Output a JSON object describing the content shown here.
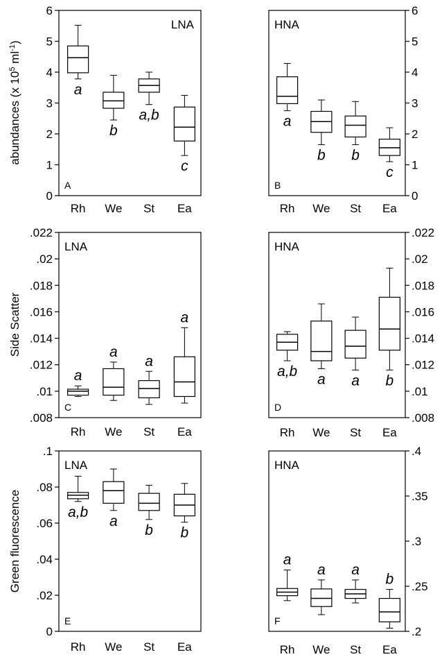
{
  "chart_data": [
    {
      "type": "box",
      "panel": "A",
      "group": "LNA",
      "group_corner": "upper right",
      "y_axis_side": "left",
      "ylabel": [
        "abundances  (x 10",
        "5",
        " ml",
        "-1",
        ")"
      ],
      "categories": [
        "Rh",
        "We",
        "St",
        "Ea"
      ],
      "ylim": [
        0,
        6
      ],
      "yticks": [
        0,
        1,
        2,
        3,
        4,
        5,
        6
      ],
      "boxes": [
        {
          "whisker_low": 3.78,
          "q1": 3.98,
          "median": 4.47,
          "q3": 4.85,
          "whisker_high": 5.52
        },
        {
          "whisker_low": 2.45,
          "q1": 2.83,
          "median": 3.07,
          "q3": 3.35,
          "whisker_high": 3.9
        },
        {
          "whisker_low": 2.95,
          "q1": 3.35,
          "median": 3.57,
          "q3": 3.78,
          "whisker_high": 4.0
        },
        {
          "whisker_low": 1.3,
          "q1": 1.77,
          "median": 2.22,
          "q3": 2.87,
          "whisker_high": 3.25
        }
      ],
      "letters": [
        "a",
        "b",
        "a,b",
        "c"
      ],
      "letter_position": "below",
      "letter_color": "#e8141c"
    },
    {
      "type": "box",
      "panel": "B",
      "group": "HNA",
      "group_corner": "upper left",
      "y_axis_side": "right",
      "categories": [
        "Rh",
        "We",
        "St",
        "Ea"
      ],
      "ylim": [
        0,
        6
      ],
      "yticks": [
        0,
        1,
        2,
        3,
        4,
        5,
        6
      ],
      "boxes": [
        {
          "whisker_low": 2.75,
          "q1": 2.98,
          "median": 3.22,
          "q3": 3.85,
          "whisker_high": 4.28
        },
        {
          "whisker_low": 1.65,
          "q1": 2.05,
          "median": 2.4,
          "q3": 2.73,
          "whisker_high": 3.1
        },
        {
          "whisker_low": 1.65,
          "q1": 1.9,
          "median": 2.28,
          "q3": 2.58,
          "whisker_high": 3.05
        },
        {
          "whisker_low": 1.1,
          "q1": 1.3,
          "median": 1.55,
          "q3": 1.83,
          "whisker_high": 2.2
        }
      ],
      "letters": [
        "a",
        "b",
        "b",
        "c"
      ],
      "letter_position": "below",
      "letter_color": "#e8141c"
    },
    {
      "type": "box",
      "panel": "C",
      "group": "LNA",
      "group_corner": "upper left",
      "y_axis_side": "left",
      "ylabel": [
        "Side Scatter"
      ],
      "categories": [
        "Rh",
        "We",
        "St",
        "Ea"
      ],
      "ylim": [
        0.008,
        0.022
      ],
      "yticks": [
        {
          "value": 0.008,
          "label": ".008"
        },
        {
          "value": 0.01,
          "label": ".01"
        },
        {
          "value": 0.012,
          "label": ".012"
        },
        {
          "value": 0.014,
          "label": ".014"
        },
        {
          "value": 0.016,
          "label": ".016"
        },
        {
          "value": 0.018,
          "label": ".018"
        },
        {
          "value": 0.02,
          "label": ".02"
        },
        {
          "value": 0.022,
          "label": ".022"
        }
      ],
      "boxes": [
        {
          "whisker_low": 0.0096,
          "q1": 0.0097,
          "median": 0.01,
          "q3": 0.01015,
          "whisker_high": 0.0104
        },
        {
          "whisker_low": 0.0093,
          "q1": 0.0097,
          "median": 0.0103,
          "q3": 0.0117,
          "whisker_high": 0.0122
        },
        {
          "whisker_low": 0.009,
          "q1": 0.0095,
          "median": 0.0102,
          "q3": 0.0108,
          "whisker_high": 0.0115
        },
        {
          "whisker_low": 0.0091,
          "q1": 0.0096,
          "median": 0.0107,
          "q3": 0.0126,
          "whisker_high": 0.0148
        }
      ],
      "letters": [
        "a",
        "a",
        "a",
        "a"
      ],
      "letter_position": "above",
      "letter_color": "#e8141c"
    },
    {
      "type": "box",
      "panel": "D",
      "group": "HNA",
      "group_corner": "upper left",
      "y_axis_side": "right",
      "categories": [
        "Rh",
        "We",
        "St",
        "Ea"
      ],
      "ylim": [
        0.008,
        0.022
      ],
      "yticks": [
        {
          "value": 0.008,
          "label": ".008"
        },
        {
          "value": 0.01,
          "label": ".01"
        },
        {
          "value": 0.012,
          "label": ".012"
        },
        {
          "value": 0.014,
          "label": ".014"
        },
        {
          "value": 0.016,
          "label": ".016"
        },
        {
          "value": 0.018,
          "label": ".018"
        },
        {
          "value": 0.02,
          "label": ".02"
        },
        {
          "value": 0.022,
          "label": ".022"
        }
      ],
      "boxes": [
        {
          "whisker_low": 0.0123,
          "q1": 0.0131,
          "median": 0.0137,
          "q3": 0.0143,
          "whisker_high": 0.0145
        },
        {
          "whisker_low": 0.0117,
          "q1": 0.0123,
          "median": 0.013,
          "q3": 0.0153,
          "whisker_high": 0.0166
        },
        {
          "whisker_low": 0.0116,
          "q1": 0.0125,
          "median": 0.0134,
          "q3": 0.0146,
          "whisker_high": 0.0156
        },
        {
          "whisker_low": 0.0116,
          "q1": 0.0131,
          "median": 0.0147,
          "q3": 0.0171,
          "whisker_high": 0.0193
        }
      ],
      "letters": [
        "a,b",
        "a",
        "a",
        "b"
      ],
      "letter_position": "below",
      "letter_color": "#e8141c"
    },
    {
      "type": "box",
      "panel": "E",
      "group": "LNA",
      "group_corner": "upper left",
      "y_axis_side": "left",
      "ylabel": [
        "Green fluorescence"
      ],
      "categories": [
        "Rh",
        "We",
        "St",
        "Ea"
      ],
      "ylim": [
        0,
        0.1
      ],
      "yticks": [
        0,
        {
          "value": 0.02,
          "label": ".02"
        },
        {
          "value": 0.04,
          "label": ".04"
        },
        {
          "value": 0.06,
          "label": ".06"
        },
        {
          "value": 0.08,
          "label": ".08"
        },
        {
          "value": 0.1,
          "label": ".1"
        }
      ],
      "boxes": [
        {
          "whisker_low": 0.072,
          "q1": 0.0735,
          "median": 0.0755,
          "q3": 0.077,
          "whisker_high": 0.086
        },
        {
          "whisker_low": 0.067,
          "q1": 0.071,
          "median": 0.078,
          "q3": 0.083,
          "whisker_high": 0.09
        },
        {
          "whisker_low": 0.062,
          "q1": 0.067,
          "median": 0.071,
          "q3": 0.0765,
          "whisker_high": 0.081
        },
        {
          "whisker_low": 0.0605,
          "q1": 0.064,
          "median": 0.07,
          "q3": 0.076,
          "whisker_high": 0.082
        }
      ],
      "letters": [
        "a,b",
        "a",
        "b",
        "b"
      ],
      "letter_position": "below",
      "letter_color": "#e8141c"
    },
    {
      "type": "box",
      "panel": "F",
      "group": "HNA",
      "group_corner": "upper left",
      "y_axis_side": "right",
      "categories": [
        "Rh",
        "We",
        "St",
        "Ea"
      ],
      "ylim": [
        0.2,
        0.4
      ],
      "yticks": [
        {
          "value": 0.2,
          "label": ".2"
        },
        {
          "value": 0.25,
          "label": ".25"
        },
        {
          "value": 0.3,
          "label": ".3"
        },
        {
          "value": 0.35,
          "label": ".35"
        },
        {
          "value": 0.4,
          "label": ".4"
        }
      ],
      "boxes": [
        {
          "whisker_low": 0.234,
          "q1": 0.2395,
          "median": 0.2435,
          "q3": 0.2475,
          "whisker_high": 0.268
        },
        {
          "whisker_low": 0.2185,
          "q1": 0.2275,
          "median": 0.2365,
          "q3": 0.247,
          "whisker_high": 0.257
        },
        {
          "whisker_low": 0.2315,
          "q1": 0.2365,
          "median": 0.2415,
          "q3": 0.2465,
          "whisker_high": 0.257
        },
        {
          "whisker_low": 0.2035,
          "q1": 0.2105,
          "median": 0.2215,
          "q3": 0.2365,
          "whisker_high": 0.2465
        }
      ],
      "letters": [
        "a",
        "a",
        "a",
        "b"
      ],
      "letter_position": "above",
      "letter_color": "#e8141c"
    }
  ]
}
